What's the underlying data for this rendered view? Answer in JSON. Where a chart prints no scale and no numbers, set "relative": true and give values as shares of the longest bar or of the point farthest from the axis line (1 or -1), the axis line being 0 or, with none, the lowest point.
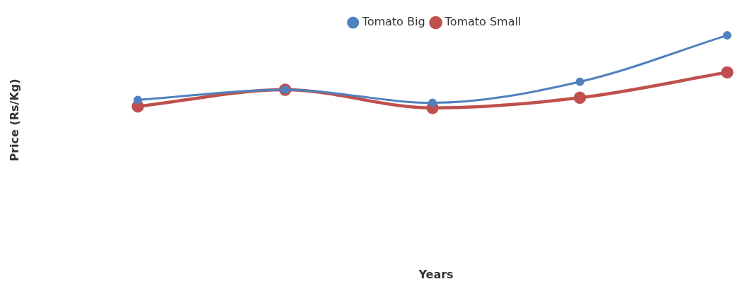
{
  "chart_data": {
    "type": "line",
    "annotations": [
      "Years"
    ],
    "ylabel": "Price (Rs/Kg)",
    "relative": true,
    "categories": [
      null,
      null,
      null,
      null,
      null
    ],
    "legend": "top",
    "marker": "circle",
    "series": [
      {
        "name": "Tomato Big",
        "color": "#4f81bd",
        "values": [
          0.11,
          0.25,
          0.07,
          0.36,
          1
        ]
      },
      {
        "name": "Tomato Small",
        "color": "#c0504d",
        "values": [
          0.02,
          0.25,
          0,
          0.14,
          0.49
        ]
      }
    ]
  }
}
